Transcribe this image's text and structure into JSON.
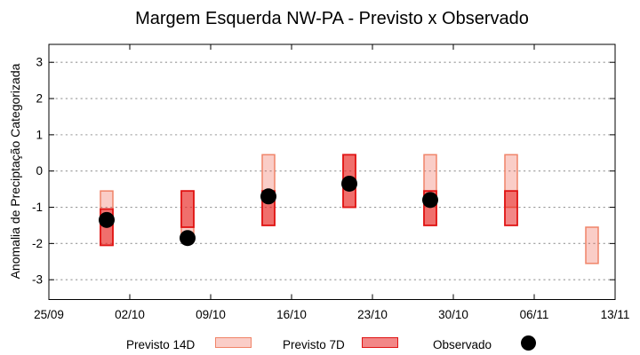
{
  "title": "Margem Esquerda NW-PA - Previsto x Observado",
  "chart_data": {
    "type": "bar",
    "subtype": "floating-range-bars-with-scatter",
    "title": "Margem Esquerda NW-PA - Previsto x Observado",
    "xlabel": "",
    "ylabel": "Anomalia de Preciptação Categorizada",
    "ylim": [
      -3.5,
      3.5
    ],
    "y_ticks": [
      3,
      2,
      1,
      0,
      -1,
      -2,
      -3
    ],
    "x_tick_labels": [
      "25/09",
      "02/10",
      "09/10",
      "16/10",
      "23/10",
      "30/10",
      "06/11",
      "13/11"
    ],
    "x_tick_day_offsets": [
      0,
      7,
      14,
      21,
      28,
      35,
      42,
      49
    ],
    "grid": "horizontal-dashed",
    "legend_position": "bottom-center",
    "series": [
      {
        "name": "Previsto 14D",
        "type": "range-bar"
      },
      {
        "name": "Previsto 7D",
        "type": "range-bar"
      },
      {
        "name": "Observado",
        "type": "scatter"
      }
    ],
    "groups": [
      {
        "date": "30/09",
        "day_offset": 5,
        "previsto_14d": [
          -2.05,
          -0.55
        ],
        "previsto_7d": [
          -2.05,
          -1.05
        ],
        "observado": -1.35
      },
      {
        "date": "07/10",
        "day_offset": 12,
        "previsto_14d": [
          -1.95,
          -0.55
        ],
        "previsto_7d": [
          -1.55,
          -0.55
        ],
        "observado": -1.85
      },
      {
        "date": "14/10",
        "day_offset": 19,
        "previsto_14d": [
          -1.5,
          0.45
        ],
        "previsto_7d": [
          -1.5,
          -0.55
        ],
        "observado": -0.7
      },
      {
        "date": "21/10",
        "day_offset": 26,
        "previsto_14d": [
          -1.0,
          0.45
        ],
        "previsto_7d": [
          -1.0,
          0.45
        ],
        "observado": -0.35
      },
      {
        "date": "28/10",
        "day_offset": 33,
        "previsto_14d": [
          -1.5,
          0.45
        ],
        "previsto_7d": [
          -1.5,
          -0.55
        ],
        "observado": -0.8
      },
      {
        "date": "04/11",
        "day_offset": 40,
        "previsto_14d": [
          -1.0,
          0.45
        ],
        "previsto_7d": [
          -1.5,
          -0.55
        ],
        "observado": null
      },
      {
        "date": "11/11",
        "day_offset": 47,
        "previsto_14d": [
          -2.55,
          -1.55
        ],
        "previsto_7d": null,
        "observado": null
      }
    ]
  },
  "legend": {
    "previsto_14d": "Previsto 14D",
    "previsto_7d": "Previsto 7D",
    "observado": "Observado"
  },
  "colors": {
    "p14_fill": "rgba(240,90,70,0.3)",
    "p14_border": "#f08468",
    "p7_fill": "rgba(230,25,25,0.52)",
    "p7_border": "#e01414",
    "observado": "#000000",
    "grid": "#999999",
    "axis": "#000000",
    "background": "#ffffff"
  }
}
